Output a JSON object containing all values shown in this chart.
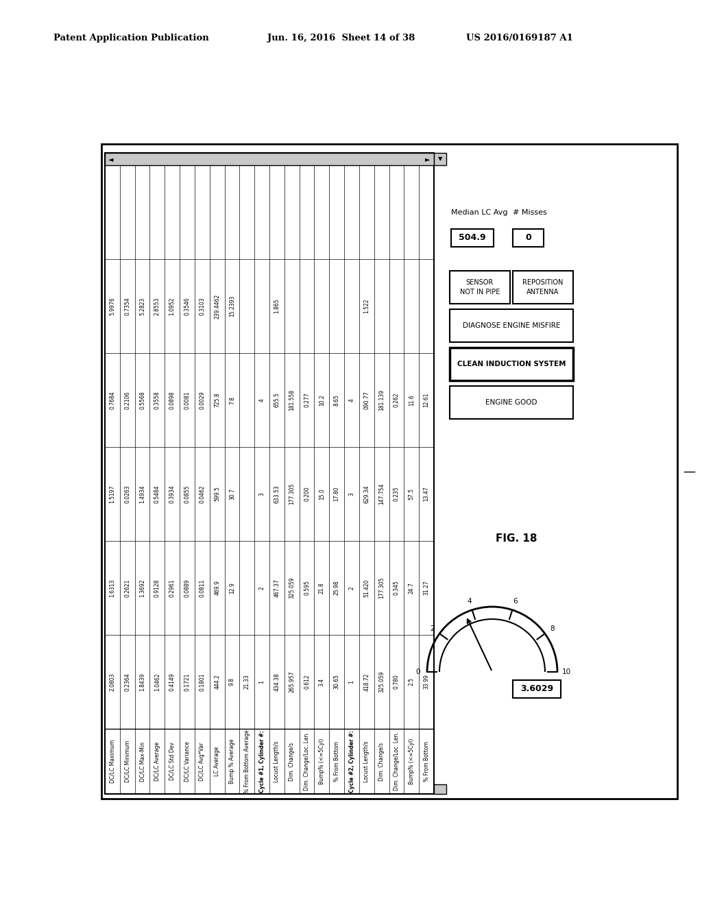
{
  "header_left": "Patent Application Publication",
  "header_mid": "Jun. 16, 2016  Sheet 14 of 38",
  "header_right": "US 2016/0169187 A1",
  "fig_label": "FIG. 18",
  "bg_color": "#ffffff",
  "row_labels": [
    "DC/LC Maximum",
    "DC/LC Minimum",
    "DC/LC Max-Min",
    "DC/LC Average",
    "DC/LC Std Dev",
    "DC/LC Variance",
    "DC/LC Avg*Var",
    "LC Average",
    "Bump % Average",
    "% From Bottom Average",
    "Cycle #1, Cylinder #:",
    "Locust Length/s",
    "Dim. Change/s",
    "Dim. Change/Loc. Len.",
    "Bump% (<=5Cyl)",
    "% From Bottom",
    "Cycle #2, Cylinder #:",
    "Locust Length/s",
    "Dim. Change/s",
    "Dim. Change/Loc. Len.",
    "Bump% (<=5Cyl)",
    "% From Bottom"
  ],
  "col1": [
    "2.0803",
    "0.2364",
    "1.8439",
    "1.0462",
    "0.4149",
    "0.1721",
    "0.1801",
    "444.2",
    "9.8",
    "21.33",
    "1",
    "434.38",
    "265.957",
    "0.612",
    "3.4",
    "30.65",
    "1",
    "418.72",
    "325.059",
    "0.780",
    "2.5",
    "33.99"
  ],
  "col2": [
    "1.6313",
    "0.2621",
    "1.3692",
    "0.9128",
    "0.2961",
    "0.0889",
    "0.0811",
    "469.9",
    "12.9",
    "",
    "2",
    "467.37",
    "325.059",
    "0.595",
    "21.8",
    "25.98",
    "2",
    "51.420",
    "177.305",
    "0.345",
    "24.7",
    "31.27"
  ],
  "col3": [
    "1.5197",
    "0.0263",
    "1.4934",
    "0.5484",
    "0.3934",
    "0.0855",
    "0.0462",
    "599.5",
    "30.7",
    "",
    "3",
    "633.53",
    "177.305",
    "0.200",
    "15.0",
    "17.80",
    "3",
    "629.34",
    "147.754",
    "0.235",
    "57.5",
    "13.47"
  ],
  "col4": [
    "0.7684",
    "0.2106",
    "0.5568",
    "0.3558",
    "0.0898",
    "0.0081",
    "0.0029",
    "725.8",
    "7.8",
    "",
    "4",
    "655.5",
    "181.558",
    "0.277",
    "10.2",
    "8.65",
    "4",
    "090.77",
    "181.139",
    "0.262",
    "11.6",
    "12.61"
  ],
  "col5": [
    "5.9976",
    "0.7354",
    "5.2823",
    "2.8553",
    "1.0952",
    "0.3546",
    "0.3103",
    "239.4462",
    "15.2393",
    "",
    "",
    "1.865",
    "",
    "",
    "",
    "",
    "",
    "1.522",
    "",
    "",
    "",
    ""
  ],
  "median_lc_avg_label": "Median LC Avg",
  "median_lc_avg_value": "504.9",
  "misses_label": "# Misses",
  "misses_value": "0",
  "buttons": [
    {
      "text": "SENSOR\nNOT IN PIPE",
      "bold": false,
      "highlight": false
    },
    {
      "text": "REPOSITION\nANTENNA",
      "bold": false,
      "highlight": false
    },
    {
      "text": "DIAGNOSE ENGINE MISFIRE",
      "bold": false,
      "highlight": false
    },
    {
      "text": "CLEAN INDUCTION SYSTEM",
      "bold": true,
      "highlight": true
    },
    {
      "text": "ENGINE GOOD",
      "bold": false,
      "highlight": false
    }
  ],
  "gauge_value": "3.6029",
  "gauge_ticks": [
    0,
    2,
    4,
    6,
    8,
    10
  ]
}
